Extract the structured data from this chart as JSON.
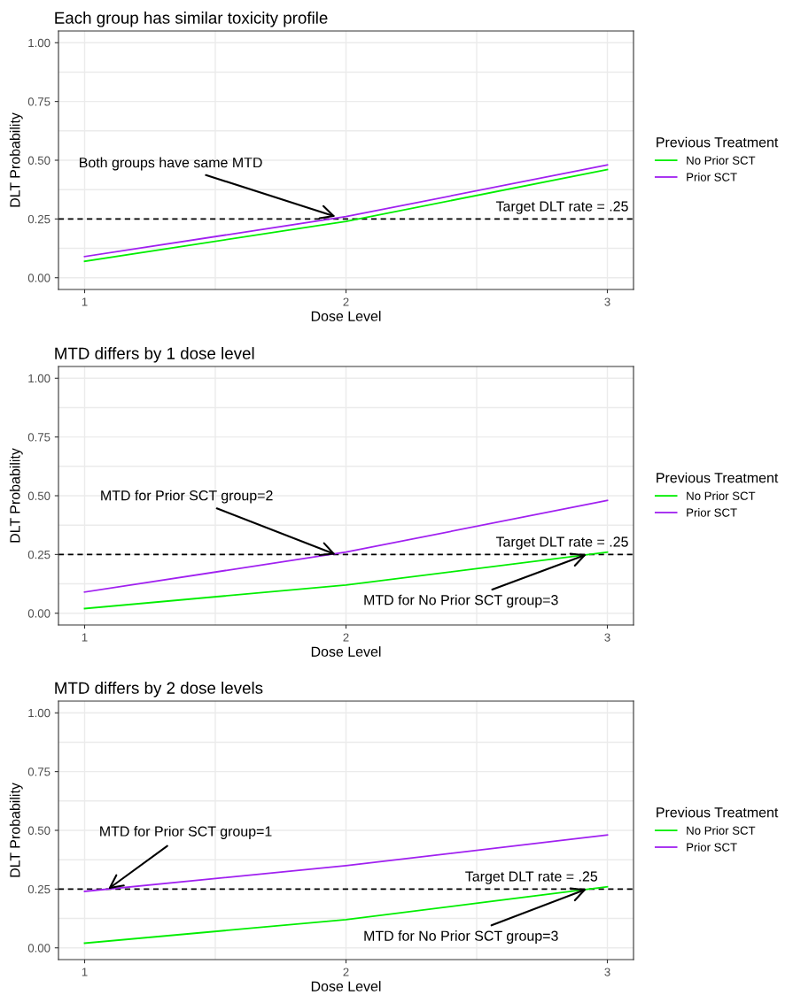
{
  "chart_data": [
    {
      "type": "line",
      "title": "Each group has similar toxicity profile",
      "xlabel": "Dose Level",
      "ylabel": "DLT Probability",
      "legend_title": "Previous Treatment",
      "legend": "right",
      "grid": true,
      "x": [
        1,
        2,
        3
      ],
      "xlim": [
        0.9,
        3.1
      ],
      "xticks": [
        1,
        2,
        3
      ],
      "ylim": [
        -0.05,
        1.05
      ],
      "yticks": [
        {
          "value": 0,
          "label": "0.00"
        },
        {
          "value": 0.25,
          "label": "0.25"
        },
        {
          "value": 0.5,
          "label": "0.50"
        },
        {
          "value": 0.75,
          "label": "0.75"
        },
        {
          "value": 1,
          "label": "1.00"
        }
      ],
      "series": [
        {
          "name": "No Prior SCT",
          "color": "#00ee00",
          "values": [
            0.07,
            0.24,
            0.46
          ]
        },
        {
          "name": "Prior SCT",
          "color": "#a020f0",
          "values": [
            0.09,
            0.26,
            0.48
          ]
        }
      ],
      "ref_lines": [
        {
          "axis": "y",
          "value": 0.25,
          "label": "Target DLT rate = .25",
          "color": "#000000",
          "line_style": "dashed"
        }
      ],
      "annotations": [
        {
          "text": "Both groups have same MTD",
          "x": 1.96,
          "y": 0.26
        }
      ]
    },
    {
      "type": "line",
      "title": "MTD differs by 1 dose level",
      "xlabel": "Dose Level",
      "ylabel": "DLT Probability",
      "legend_title": "Previous Treatment",
      "legend": "right",
      "grid": true,
      "x": [
        1,
        2,
        3
      ],
      "xlim": [
        0.9,
        3.1
      ],
      "xticks": [
        1,
        2,
        3
      ],
      "ylim": [
        -0.05,
        1.05
      ],
      "yticks": [
        {
          "value": 0,
          "label": "0.00"
        },
        {
          "value": 0.25,
          "label": "0.25"
        },
        {
          "value": 0.5,
          "label": "0.50"
        },
        {
          "value": 0.75,
          "label": "0.75"
        },
        {
          "value": 1,
          "label": "1.00"
        }
      ],
      "series": [
        {
          "name": "No Prior SCT",
          "color": "#00ee00",
          "values": [
            0.02,
            0.12,
            0.26
          ]
        },
        {
          "name": "Prior SCT",
          "color": "#a020f0",
          "values": [
            0.09,
            0.26,
            0.48
          ]
        }
      ],
      "ref_lines": [
        {
          "axis": "y",
          "value": 0.25,
          "label": "Target DLT rate = .25",
          "color": "#000000",
          "line_style": "dashed"
        }
      ],
      "annotations": [
        {
          "text": "MTD for Prior SCT group=2",
          "x": 1.96,
          "y": 0.25
        },
        {
          "text": "MTD for No Prior SCT group=3",
          "x": 2.92,
          "y": 0.25
        }
      ]
    },
    {
      "type": "line",
      "title": "MTD differs by 2 dose levels",
      "xlabel": "Dose Level",
      "ylabel": "DLT Probability",
      "legend_title": "Previous Treatment",
      "legend": "right",
      "grid": true,
      "x": [
        1,
        2,
        3
      ],
      "xlim": [
        0.9,
        3.1
      ],
      "xticks": [
        1,
        2,
        3
      ],
      "ylim": [
        -0.05,
        1.05
      ],
      "yticks": [
        {
          "value": 0,
          "label": "0.00"
        },
        {
          "value": 0.25,
          "label": "0.25"
        },
        {
          "value": 0.5,
          "label": "0.50"
        },
        {
          "value": 0.75,
          "label": "0.75"
        },
        {
          "value": 1,
          "label": "1.00"
        }
      ],
      "series": [
        {
          "name": "No Prior SCT",
          "color": "#00ee00",
          "values": [
            0.02,
            0.12,
            0.26
          ]
        },
        {
          "name": "Prior SCT",
          "color": "#a020f0",
          "values": [
            0.24,
            0.35,
            0.48
          ]
        }
      ],
      "ref_lines": [
        {
          "axis": "y",
          "value": 0.25,
          "label": "Target DLT rate = .25",
          "color": "#000000",
          "line_style": "dashed"
        }
      ],
      "annotations": [
        {
          "text": "MTD for Prior SCT group=1",
          "x": 1.09,
          "y": 0.25
        },
        {
          "text": "MTD for No Prior SCT group=3",
          "x": 2.92,
          "y": 0.25
        }
      ]
    }
  ]
}
